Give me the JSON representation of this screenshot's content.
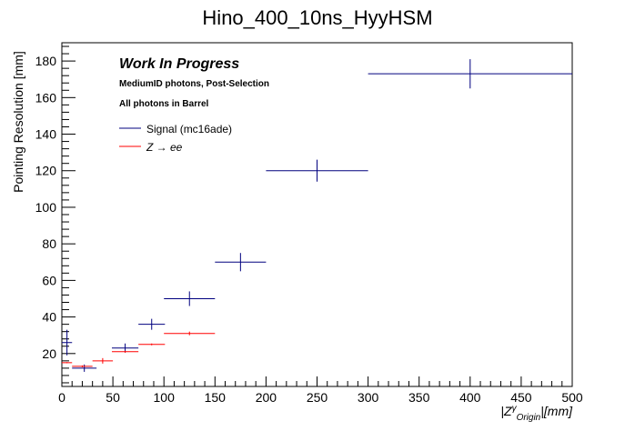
{
  "chart_data": {
    "type": "scatter",
    "title": "Hino_400_10ns_HyyHSM",
    "ylabel": "Pointing Resolution [mm]",
    "xlabel": "|Z_Origin^γ|[mm]",
    "xlim": [
      0,
      500
    ],
    "ylim": [
      2,
      190
    ],
    "x_ticks": [
      0,
      50,
      100,
      150,
      200,
      250,
      300,
      350,
      400,
      450,
      500
    ],
    "y_ticks": [
      20,
      40,
      60,
      80,
      100,
      120,
      140,
      160,
      180
    ],
    "grid": false,
    "legend_position": "top-left",
    "annotations": {
      "work_in_progress": "Work In Progress",
      "selection": "MediumID photons, Post-Selection",
      "region": "All photons in Barrel"
    },
    "series": [
      {
        "name": "Signal (mc16ade)",
        "color": "#00007f",
        "points": [
          {
            "x": 5,
            "xerr": 5,
            "y": 26,
            "yerr": 7
          },
          {
            "x": 22,
            "xerr": 12,
            "y": 12,
            "yerr": 2
          },
          {
            "x": 62,
            "xerr": 13,
            "y": 23,
            "yerr": 2.5
          },
          {
            "x": 88,
            "xerr": 13,
            "y": 36,
            "yerr": 3
          },
          {
            "x": 125,
            "xerr": 25,
            "y": 50,
            "yerr": 4
          },
          {
            "x": 175,
            "xerr": 25,
            "y": 70,
            "yerr": 5
          },
          {
            "x": 250,
            "xerr": 50,
            "y": 120,
            "yerr": 6
          },
          {
            "x": 400,
            "xerr": 100,
            "y": 173,
            "yerr": 8
          }
        ]
      },
      {
        "name": "Z → ee",
        "color": "#ff0000",
        "points": [
          {
            "x": 5,
            "xerr": 5,
            "y": 15,
            "yerr": 0.3
          },
          {
            "x": 20,
            "xerr": 10,
            "y": 13,
            "yerr": 0.5
          },
          {
            "x": 40,
            "xerr": 10,
            "y": 16,
            "yerr": 1.5
          },
          {
            "x": 62,
            "xerr": 13,
            "y": 21,
            "yerr": 0.5
          },
          {
            "x": 88,
            "xerr": 13,
            "y": 25,
            "yerr": 0.5
          },
          {
            "x": 125,
            "xerr": 25,
            "y": 31,
            "yerr": 1
          }
        ]
      }
    ]
  }
}
